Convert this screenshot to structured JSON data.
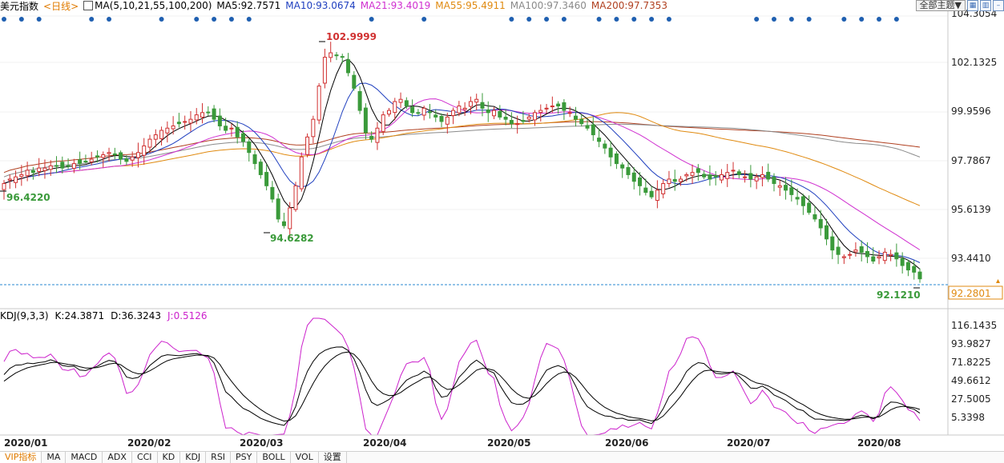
{
  "header": {
    "name": "美元指数",
    "period": "<日线>",
    "ma_title": "MA(5,10,21,55,100,200)",
    "ma_values": [
      {
        "text": "MA5:92.7571",
        "color": "#000000"
      },
      {
        "text": "MA10:93.0674",
        "color": "#1f3fbf"
      },
      {
        "text": "MA21:93.4019",
        "color": "#d030d0"
      },
      {
        "text": "MA55:95.4911",
        "color": "#e08a10"
      },
      {
        "text": "MA100:97.3460",
        "color": "#8a8a8a"
      },
      {
        "text": "MA200:97.7353",
        "color": "#b04020"
      }
    ],
    "theme_button": "全部主题▼"
  },
  "colors": {
    "up": "#d03030",
    "down": "#3a9a3a",
    "dots": "#1f5fb0",
    "price_line": "#2a8ad0",
    "k": "#000000",
    "d": "#000000",
    "j": "#cc22cc"
  },
  "price_axis": [
    "104.3054",
    "102.1325",
    "99.9596",
    "97.7867",
    "95.6139",
    "93.4410"
  ],
  "current_price": "92.2801",
  "annotations": {
    "high": "102.9999",
    "low1": "96.4220",
    "low2": "94.6282",
    "low3": "92.1210"
  },
  "kdj": {
    "title": "KDJ(9,3,3)",
    "values": [
      {
        "text": "K:24.3871",
        "color": "#000000"
      },
      {
        "text": "D:36.3243",
        "color": "#000000"
      },
      {
        "text": "J:0.5126",
        "color": "#cc22cc"
      }
    ],
    "axis": [
      "116.1435",
      "93.9827",
      "71.8225",
      "49.6612",
      "27.5005",
      "5.3398"
    ]
  },
  "time_axis": [
    "2020/01",
    "2020/02",
    "2020/03",
    "2020/04",
    "2020/05",
    "2020/06",
    "2020/07",
    "2020/08"
  ],
  "tabs": [
    "VIP指标",
    "MA",
    "MACD",
    "ADX",
    "CCI",
    "KD",
    "KDJ",
    "RSI",
    "PSY",
    "BOLL",
    "VOL",
    "设置"
  ],
  "chart_data": {
    "type": "candlestick",
    "closes": [
      96.6,
      96.8,
      96.9,
      97.0,
      97.2,
      97.1,
      97.3,
      97.3,
      97.4,
      97.4,
      97.3,
      97.4,
      97.5,
      97.5,
      97.6,
      97.7,
      97.8,
      97.9,
      98.0,
      97.9,
      97.7,
      97.6,
      97.8,
      98.0,
      98.3,
      98.6,
      98.8,
      99.0,
      99.1,
      99.2,
      99.3,
      99.4,
      99.5,
      99.7,
      99.8,
      99.8,
      99.5,
      99.2,
      99.0,
      99.1,
      98.7,
      98.5,
      98.0,
      97.5,
      97.0,
      96.5,
      95.9,
      95.0,
      94.7,
      95.5,
      96.5,
      97.8,
      98.7,
      99.5,
      101.0,
      102.3,
      102.5,
      102.4,
      102.3,
      101.6,
      100.9,
      99.9,
      98.9,
      98.6,
      99.1,
      99.7,
      99.9,
      100.3,
      100.4,
      100.1,
      99.8,
      99.8,
      100.0,
      99.8,
      99.6,
      99.4,
      99.6,
      99.9,
      100.1,
      100.0,
      100.3,
      100.4,
      100.0,
      99.8,
      99.9,
      99.6,
      99.5,
      99.3,
      99.3,
      99.4,
      99.6,
      99.8,
      99.9,
      100.0,
      100.1,
      100.1,
      99.9,
      99.8,
      99.5,
      99.3,
      99.1,
      98.8,
      98.5,
      98.2,
      97.8,
      97.5,
      97.3,
      97.0,
      96.7,
      96.5,
      96.2,
      96.0,
      96.3,
      96.6,
      96.8,
      96.7,
      96.8,
      97.0,
      97.1,
      97.1,
      96.9,
      96.8,
      96.9,
      97.0,
      97.1,
      97.2,
      97.0,
      96.9,
      96.8,
      96.9,
      97.0,
      96.8,
      96.6,
      96.5,
      96.3,
      96.1,
      95.9,
      95.6,
      95.3,
      95.0,
      94.6,
      94.1,
      93.6,
      93.4,
      93.3,
      93.4,
      93.6,
      93.5,
      93.3,
      93.1,
      93.3,
      93.5,
      93.4,
      93.2,
      92.9,
      92.7,
      92.6,
      92.3
    ],
    "high": 102.9999,
    "low": 92.121,
    "current": 92.2801,
    "ylim": [
      92.0,
      104.3054
    ],
    "kdj_ylim": [
      -5,
      122
    ]
  }
}
